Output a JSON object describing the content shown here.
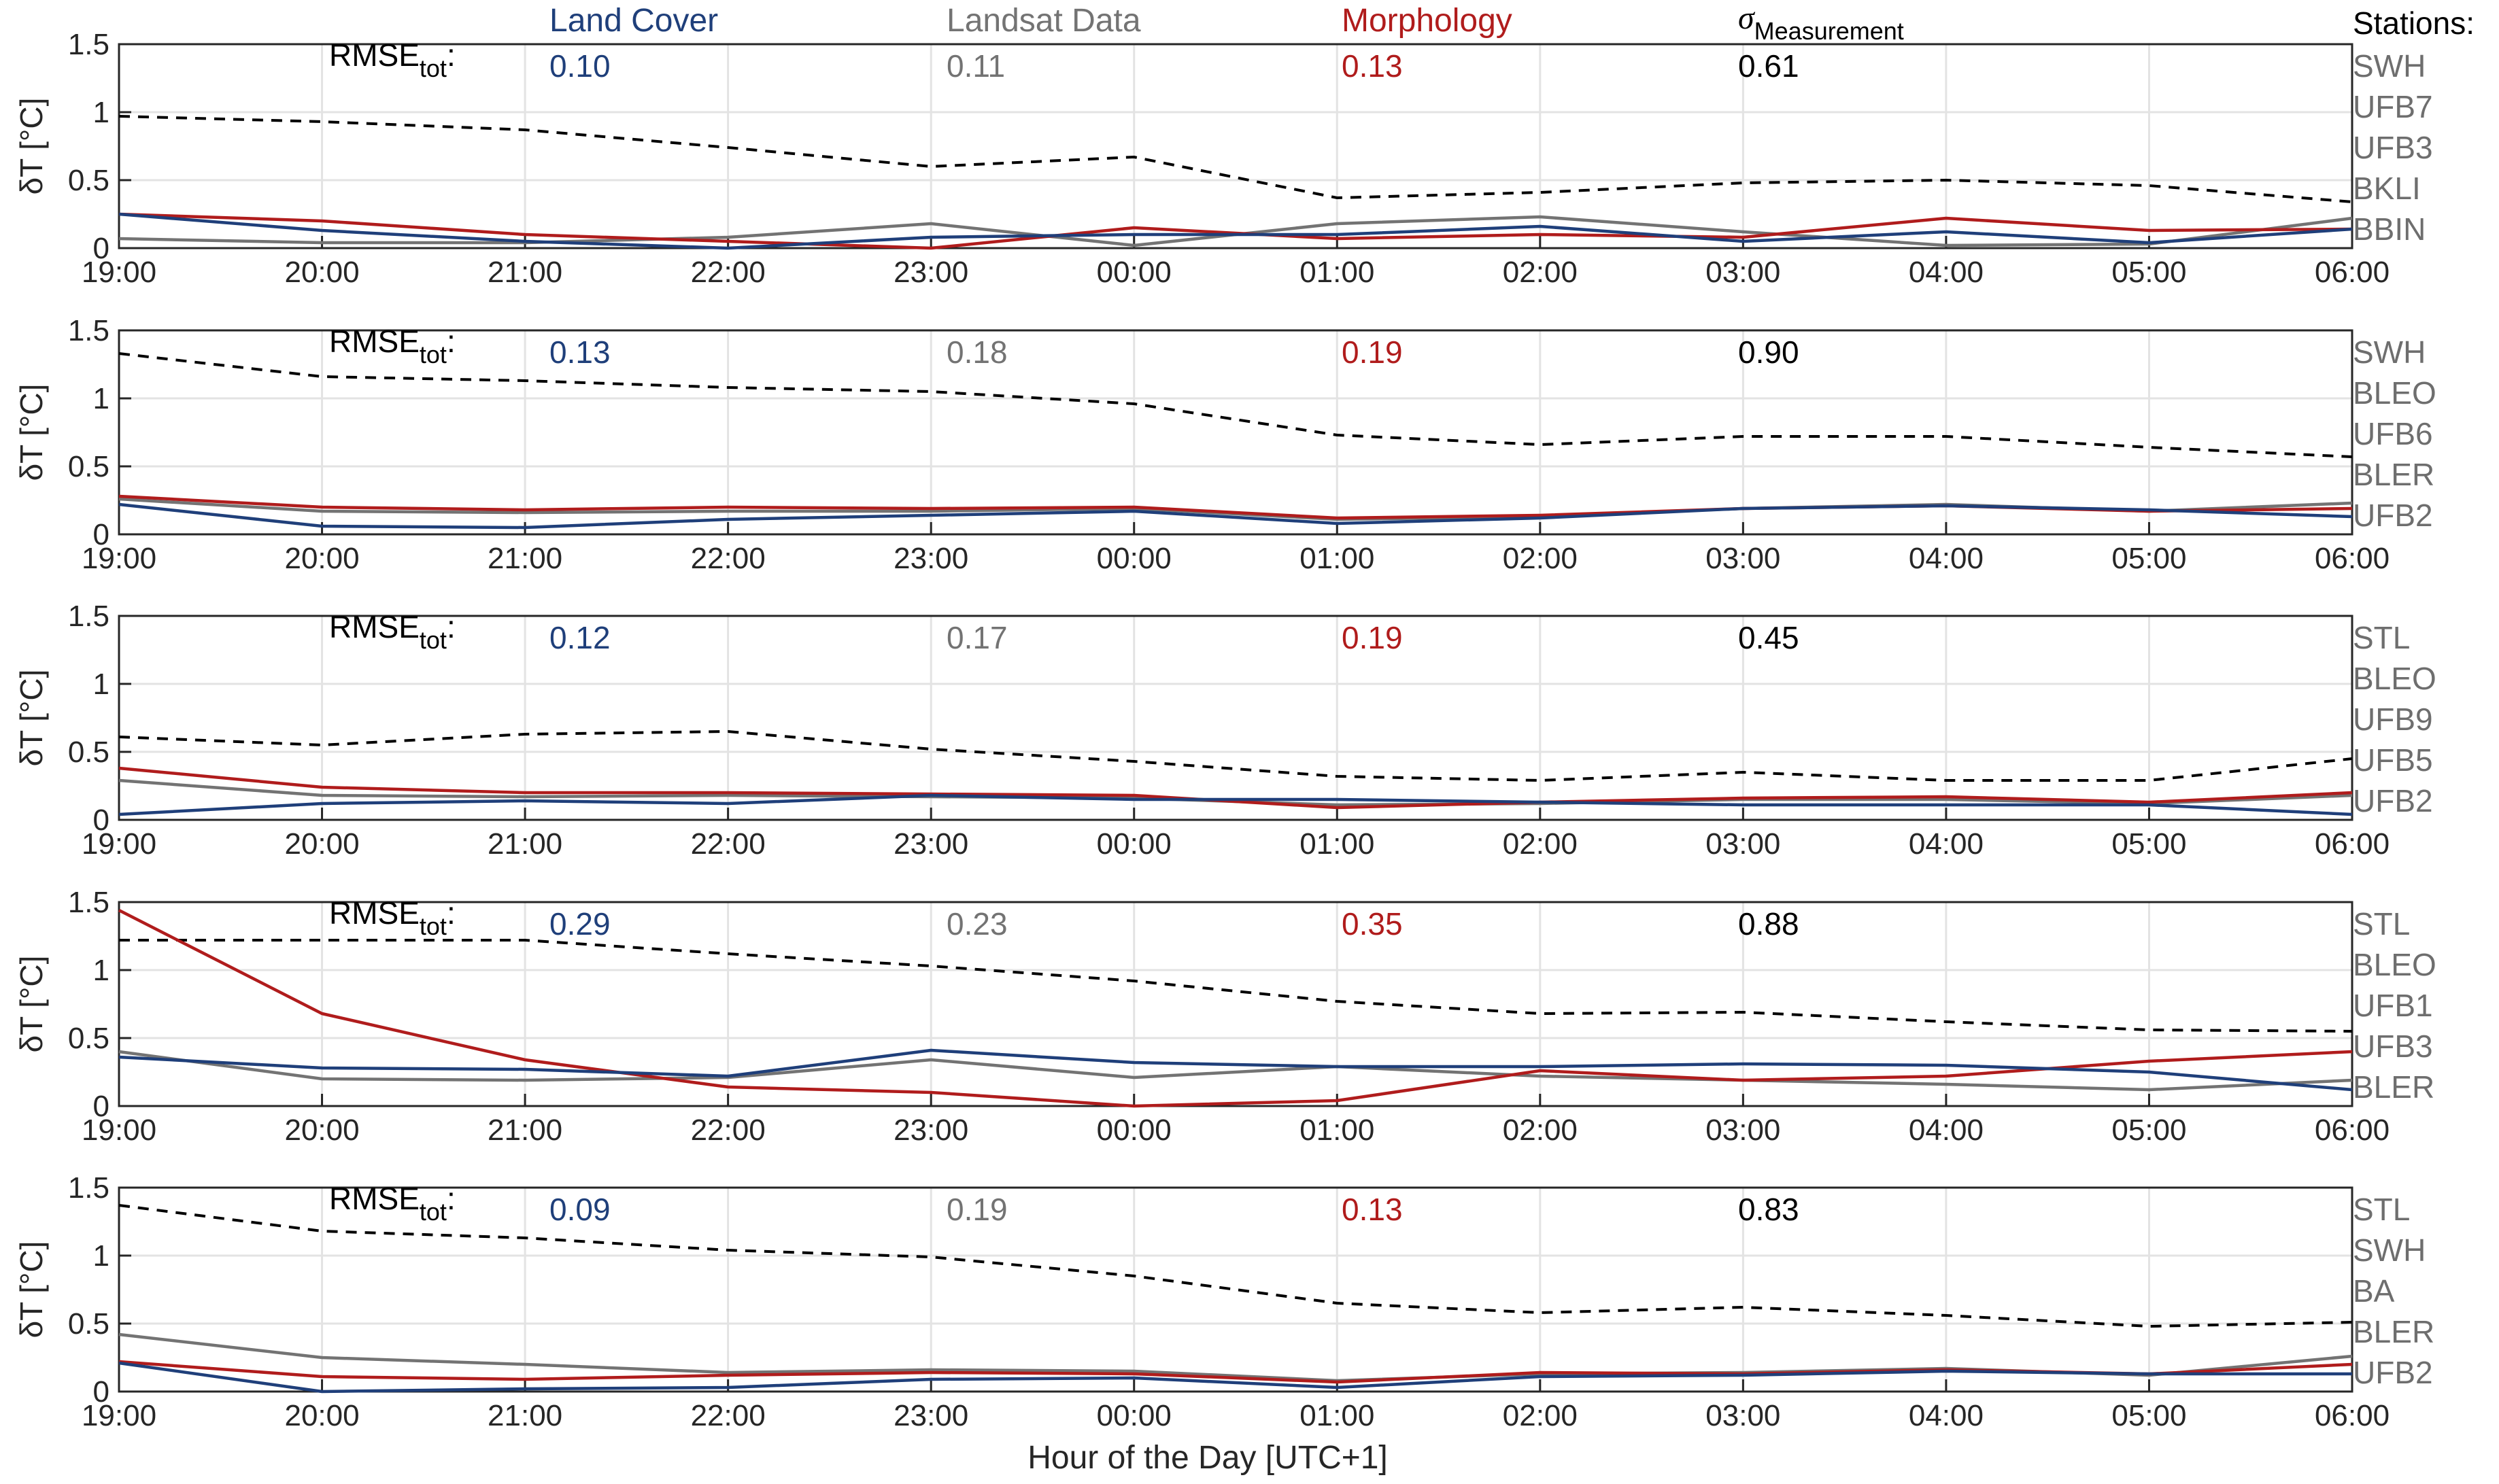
{
  "chart_data": {
    "type": "line",
    "xlabel": "Hour of the Day [UTC+1]",
    "ylabel": "δT [°C]",
    "x_ticks": [
      "19:00",
      "20:00",
      "21:00",
      "22:00",
      "23:00",
      "00:00",
      "01:00",
      "02:00",
      "03:00",
      "04:00",
      "05:00",
      "06:00"
    ],
    "y_ticks": [
      "0",
      "0.5",
      "1",
      "1.5"
    ],
    "ylim": [
      0,
      1.5
    ],
    "grid": true,
    "legend": {
      "position": "top",
      "items": [
        {
          "text": "Land Cover",
          "color": "#1f3f7a"
        },
        {
          "text": "Landsat Data",
          "color": "#737373"
        },
        {
          "text": "Morphology",
          "color": "#b01c1c"
        },
        {
          "symbol": "σ",
          "subscript": "Measurement",
          "color": "#000000",
          "style": "dashed"
        }
      ]
    },
    "stations_header": "Stations:",
    "rmse_label": "RMSE",
    "rmse_subscript": "tot",
    "rmse_suffix": ":",
    "colors": {
      "land_cover": "#1f3f7a",
      "landsat": "#737373",
      "morphology": "#b01c1c",
      "sigma": "#000000"
    },
    "panels": [
      {
        "rmse": {
          "land_cover": "0.10",
          "landsat": "0.11",
          "morphology": "0.13",
          "sigma": "0.61"
        },
        "stations": [
          "SWH",
          "UFB7",
          "UFB3",
          "BKLI",
          "BBIN"
        ],
        "series": {
          "land_cover": [
            0.25,
            0.13,
            0.05,
            0.0,
            0.08,
            0.1,
            0.1,
            0.16,
            0.05,
            0.12,
            0.04,
            0.14
          ],
          "landsat": [
            0.07,
            0.04,
            0.04,
            0.08,
            0.18,
            0.02,
            0.18,
            0.23,
            0.12,
            0.02,
            0.03,
            0.22
          ],
          "morphology": [
            0.25,
            0.2,
            0.1,
            0.05,
            0.0,
            0.15,
            0.07,
            0.1,
            0.08,
            0.22,
            0.13,
            0.14
          ],
          "sigma": [
            0.97,
            0.93,
            0.87,
            0.74,
            0.6,
            0.67,
            0.37,
            0.41,
            0.48,
            0.5,
            0.46,
            0.34
          ]
        }
      },
      {
        "rmse": {
          "land_cover": "0.13",
          "landsat": "0.18",
          "morphology": "0.19",
          "sigma": "0.90"
        },
        "stations": [
          "SWH",
          "BLEO",
          "UFB6",
          "BLER",
          "UFB2"
        ],
        "series": {
          "land_cover": [
            0.22,
            0.06,
            0.05,
            0.11,
            0.14,
            0.17,
            0.08,
            0.12,
            0.19,
            0.21,
            0.18,
            0.13
          ],
          "landsat": [
            0.26,
            0.17,
            0.16,
            0.17,
            0.17,
            0.19,
            0.11,
            0.13,
            0.19,
            0.22,
            0.17,
            0.23
          ],
          "morphology": [
            0.28,
            0.2,
            0.18,
            0.2,
            0.19,
            0.2,
            0.12,
            0.14,
            0.19,
            0.21,
            0.17,
            0.19
          ],
          "sigma": [
            1.33,
            1.16,
            1.13,
            1.08,
            1.05,
            0.96,
            0.73,
            0.66,
            0.72,
            0.72,
            0.64,
            0.57
          ]
        }
      },
      {
        "rmse": {
          "land_cover": "0.12",
          "landsat": "0.17",
          "morphology": "0.19",
          "sigma": "0.45"
        },
        "stations": [
          "STL",
          "BLEO",
          "UFB9",
          "UFB5",
          "UFB2"
        ],
        "series": {
          "land_cover": [
            0.04,
            0.12,
            0.14,
            0.12,
            0.18,
            0.15,
            0.15,
            0.13,
            0.11,
            0.11,
            0.11,
            0.04
          ],
          "landsat": [
            0.29,
            0.18,
            0.17,
            0.18,
            0.17,
            0.16,
            0.11,
            0.12,
            0.15,
            0.15,
            0.12,
            0.18
          ],
          "morphology": [
            0.38,
            0.24,
            0.2,
            0.2,
            0.19,
            0.18,
            0.09,
            0.13,
            0.16,
            0.17,
            0.13,
            0.2
          ],
          "sigma": [
            0.61,
            0.55,
            0.63,
            0.65,
            0.52,
            0.43,
            0.32,
            0.29,
            0.35,
            0.29,
            0.29,
            0.45
          ]
        }
      },
      {
        "rmse": {
          "land_cover": "0.29",
          "landsat": "0.23",
          "morphology": "0.35",
          "sigma": "0.88"
        },
        "stations": [
          "STL",
          "BLEO",
          "UFB1",
          "UFB3",
          "BLER"
        ],
        "series": {
          "land_cover": [
            0.36,
            0.28,
            0.27,
            0.22,
            0.41,
            0.32,
            0.29,
            0.29,
            0.31,
            0.3,
            0.25,
            0.12
          ],
          "landsat": [
            0.4,
            0.2,
            0.19,
            0.21,
            0.34,
            0.21,
            0.29,
            0.22,
            0.19,
            0.16,
            0.12,
            0.19
          ],
          "morphology": [
            1.44,
            0.68,
            0.34,
            0.14,
            0.1,
            0.0,
            0.04,
            0.26,
            0.19,
            0.22,
            0.33,
            0.4
          ],
          "sigma": [
            1.22,
            1.22,
            1.22,
            1.12,
            1.03,
            0.92,
            0.77,
            0.68,
            0.69,
            0.62,
            0.56,
            0.55
          ]
        }
      },
      {
        "rmse": {
          "land_cover": "0.09",
          "landsat": "0.19",
          "morphology": "0.13",
          "sigma": "0.83"
        },
        "stations": [
          "STL",
          "SWH",
          "BA",
          "BLER",
          "UFB2"
        ],
        "series": {
          "land_cover": [
            0.21,
            0.0,
            0.02,
            0.03,
            0.09,
            0.1,
            0.03,
            0.11,
            0.12,
            0.15,
            0.13,
            0.13
          ],
          "landsat": [
            0.42,
            0.25,
            0.2,
            0.14,
            0.16,
            0.15,
            0.08,
            0.13,
            0.14,
            0.17,
            0.12,
            0.26
          ],
          "morphology": [
            0.22,
            0.11,
            0.09,
            0.12,
            0.14,
            0.13,
            0.07,
            0.14,
            0.13,
            0.16,
            0.13,
            0.2
          ],
          "sigma": [
            1.37,
            1.18,
            1.13,
            1.04,
            0.99,
            0.85,
            0.65,
            0.58,
            0.62,
            0.56,
            0.48,
            0.51
          ]
        }
      }
    ]
  }
}
